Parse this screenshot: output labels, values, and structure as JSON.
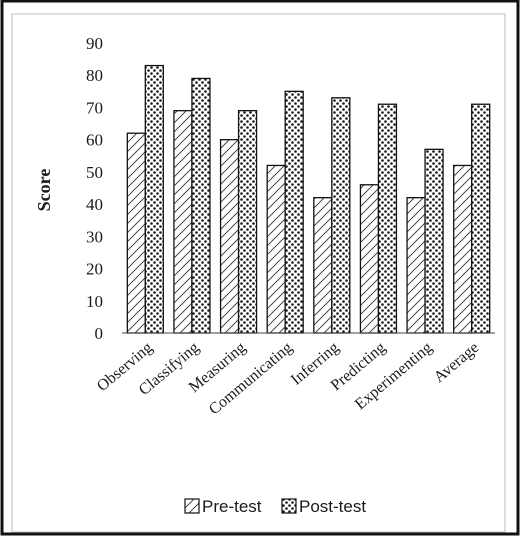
{
  "chart_data": {
    "type": "bar",
    "categories": [
      "Observing",
      "Classifying",
      "Measuring",
      "Communicating",
      "Inferring",
      "Predicting",
      "Experimenting",
      "Average"
    ],
    "series": [
      {
        "name": "Pre-test",
        "values": [
          62,
          69,
          60,
          52,
          42,
          46,
          42,
          52
        ],
        "pattern": "diagonal-hatch"
      },
      {
        "name": "Post-test",
        "values": [
          83,
          79,
          69,
          75,
          73,
          71,
          57,
          71
        ],
        "pattern": "dots"
      }
    ],
    "title": "",
    "xlabel": "",
    "ylabel": "Score",
    "ylim": [
      0,
      90
    ],
    "yticks": [
      0,
      10,
      20,
      30,
      40,
      50,
      60,
      70,
      80,
      90
    ],
    "grid": false,
    "legend": "bottom"
  }
}
